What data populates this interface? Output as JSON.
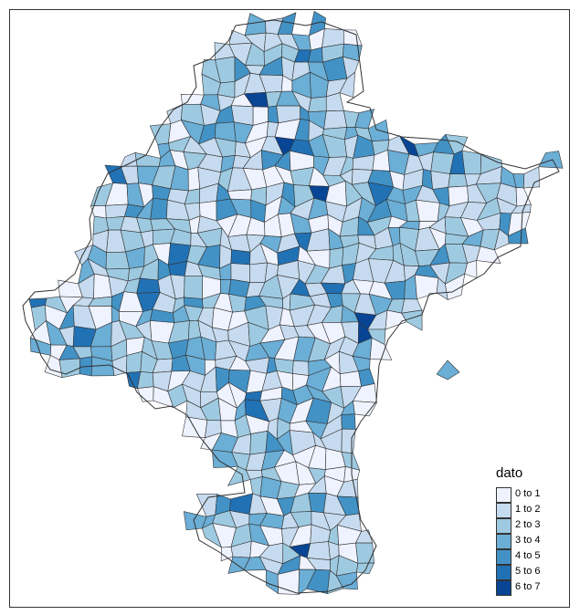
{
  "map": {
    "legend_title": "dato",
    "border_color": "#333333",
    "background_color": "#ffffff",
    "classes": [
      {
        "label": "0 to 1",
        "color": "#eff3ff"
      },
      {
        "label": "1 to 2",
        "color": "#c6dbef"
      },
      {
        "label": "2 to 3",
        "color": "#9ecae1"
      },
      {
        "label": "3 to 4",
        "color": "#6baed6"
      },
      {
        "label": "4 to 5",
        "color": "#4292c6"
      },
      {
        "label": "5 to 6",
        "color": "#2171b5"
      },
      {
        "label": "6 to 7",
        "color": "#084594"
      }
    ]
  }
}
